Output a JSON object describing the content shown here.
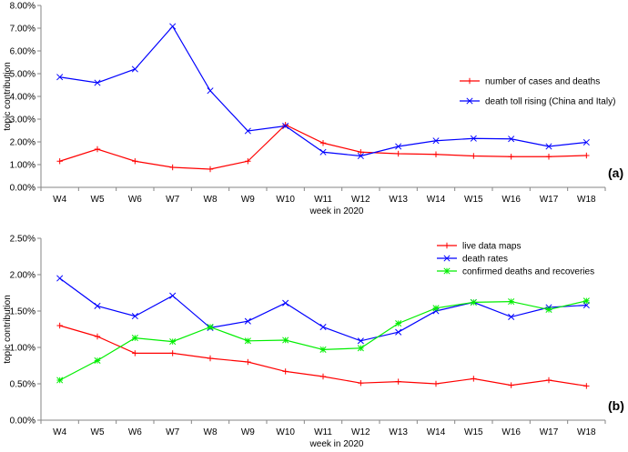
{
  "chart_data": [
    {
      "type": "line",
      "panel_label": "(a)",
      "categories": [
        "W4",
        "W5",
        "W6",
        "W7",
        "W8",
        "W9",
        "W10",
        "W11",
        "W12",
        "W13",
        "W14",
        "W15",
        "W16",
        "W17",
        "W18"
      ],
      "xlabel": "week in 2020",
      "ylabel": "topic contribution",
      "ylim": [
        0,
        8
      ],
      "yticks": [
        "0.00%",
        "1.00%",
        "2.00%",
        "3.00%",
        "4.00%",
        "5.00%",
        "6.00%",
        "7.00%",
        "8.00%"
      ],
      "grid": false,
      "legend_position": "right",
      "series": [
        {
          "name": "number of cases and deaths",
          "color": "#ff0000",
          "marker": "plus",
          "values": [
            1.15,
            1.68,
            1.15,
            0.88,
            0.8,
            1.15,
            2.75,
            1.95,
            1.55,
            1.48,
            1.45,
            1.38,
            1.35,
            1.35,
            1.4
          ]
        },
        {
          "name": "death toll rising (China and Italy)",
          "color": "#0000ff",
          "marker": "x",
          "values": [
            4.85,
            4.6,
            5.2,
            7.08,
            4.25,
            2.48,
            2.7,
            1.55,
            1.38,
            1.8,
            2.05,
            2.15,
            2.13,
            1.8,
            1.98
          ]
        }
      ]
    },
    {
      "type": "line",
      "panel_label": "(b)",
      "categories": [
        "W4",
        "W5",
        "W6",
        "W7",
        "W8",
        "W9",
        "W10",
        "W11",
        "W12",
        "W13",
        "W14",
        "W15",
        "W16",
        "W17",
        "W18"
      ],
      "xlabel": "week in 2020",
      "ylabel": "topic contribution",
      "ylim": [
        0,
        2.5
      ],
      "yticks": [
        "0.00%",
        "0.50%",
        "1.00%",
        "1.50%",
        "2.00%",
        "2.50%"
      ],
      "grid": false,
      "legend_position": "top-right",
      "series": [
        {
          "name": "live data maps",
          "color": "#ff0000",
          "marker": "plus",
          "values": [
            1.3,
            1.15,
            0.92,
            0.92,
            0.85,
            0.8,
            0.67,
            0.6,
            0.51,
            0.53,
            0.5,
            0.57,
            0.48,
            0.55,
            0.47
          ]
        },
        {
          "name": "death rates",
          "color": "#0000ff",
          "marker": "x",
          "values": [
            1.95,
            1.57,
            1.43,
            1.71,
            1.27,
            1.36,
            1.61,
            1.28,
            1.09,
            1.21,
            1.5,
            1.62,
            1.42,
            1.55,
            1.58
          ]
        },
        {
          "name": "confirmed deaths and recoveries",
          "color": "#00ee00",
          "marker": "asterisk",
          "values": [
            0.55,
            0.82,
            1.13,
            1.08,
            1.28,
            1.09,
            1.1,
            0.97,
            0.99,
            1.33,
            1.54,
            1.62,
            1.63,
            1.52,
            1.64
          ]
        }
      ]
    }
  ]
}
